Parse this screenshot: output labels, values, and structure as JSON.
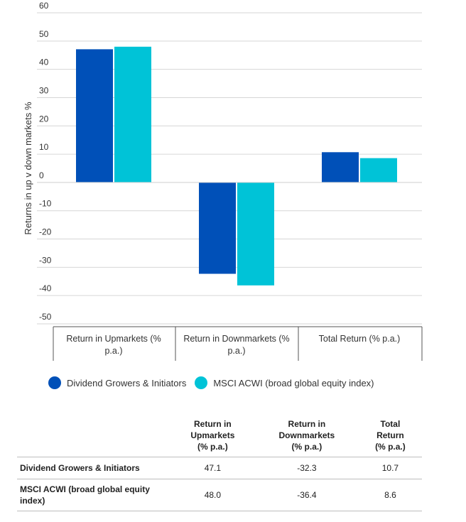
{
  "chart_data": {
    "type": "bar",
    "ylabel": "Returns in up v down markets %",
    "ylim": [
      -50,
      60
    ],
    "yticks": [
      60,
      50,
      40,
      30,
      20,
      10,
      0,
      -10,
      -20,
      -30,
      -40,
      -50
    ],
    "grid": true,
    "categories": [
      "Return in Upmarkets (%\np.a.)",
      "Return in Downmarkets (%\np.a.)",
      "Total Return (% p.a.)"
    ],
    "series": [
      {
        "name": "Dividend Growers & Initiators",
        "color": "#0050b8",
        "values": [
          47.1,
          -32.3,
          10.7
        ]
      },
      {
        "name": "MSCI ACWI (broad global equity index)",
        "color": "#00c3d7",
        "values": [
          48.0,
          -36.4,
          8.6
        ]
      }
    ],
    "legend_position": "bottom"
  },
  "legend": {
    "items": [
      {
        "label": "Dividend Growers & Initiators",
        "color": "#0050b8"
      },
      {
        "label": "MSCI ACWI (broad global equity index)",
        "color": "#00c3d7"
      }
    ]
  },
  "table": {
    "headers": [
      "",
      "Return in Upmarkets (% p.a.)",
      "Return in Downmarkets (% p.a.)",
      "Total Return (% p.a.)"
    ],
    "rows": [
      {
        "label": "Dividend Growers & Initiators",
        "values": [
          "47.1",
          "-32.3",
          "10.7"
        ]
      },
      {
        "label": "MSCI ACWI (broad global equity index)",
        "values": [
          "48.0",
          "-36.4",
          "8.6"
        ]
      }
    ]
  }
}
